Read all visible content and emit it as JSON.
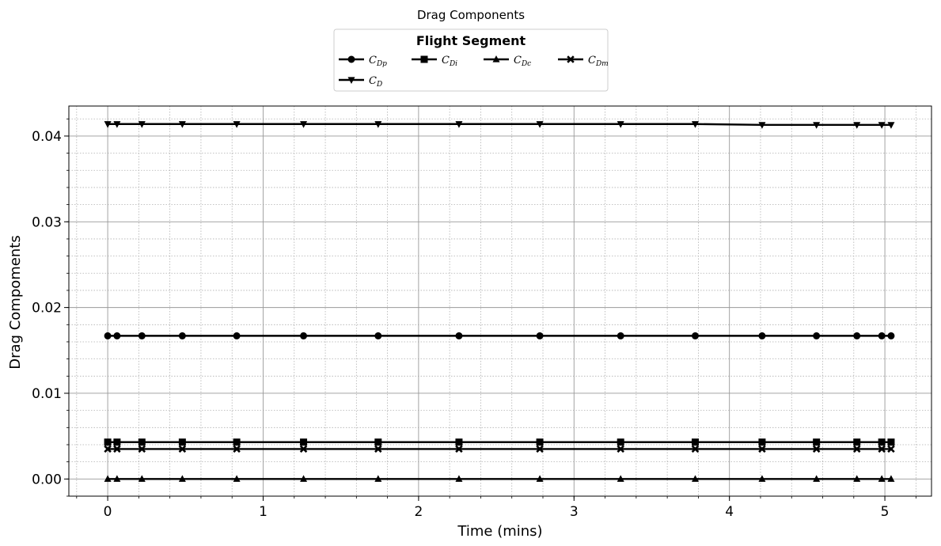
{
  "chart_data": {
    "type": "line",
    "title": "Drag Components",
    "xlabel": "Time (mins)",
    "ylabel": "Drag Compoments",
    "xlim": [
      -0.25,
      5.3
    ],
    "ylim": [
      -0.002,
      0.0435
    ],
    "xticks": [
      0,
      1,
      2,
      3,
      4,
      5
    ],
    "xtick_labels": [
      "0",
      "1",
      "2",
      "3",
      "4",
      "5"
    ],
    "yticks": [
      0.0,
      0.01,
      0.02,
      0.03,
      0.04
    ],
    "ytick_labels": [
      "0.00",
      "0.01",
      "0.02",
      "0.03",
      "0.04"
    ],
    "grid": true,
    "minor_grid": true,
    "legend": {
      "title": "Flight Segment",
      "placement": "above plot, centered",
      "columns": 4
    },
    "x": [
      0,
      0.06,
      0.22,
      0.48,
      0.83,
      1.26,
      1.74,
      2.26,
      2.78,
      3.3,
      3.78,
      4.21,
      4.56,
      4.82,
      4.98,
      5.04
    ],
    "series": [
      {
        "name": "C_Dp",
        "base": "C",
        "sub": "Dp",
        "marker": "circle",
        "color": "#000000",
        "values": [
          0.0167,
          0.0167,
          0.0167,
          0.0167,
          0.0167,
          0.0167,
          0.0167,
          0.0167,
          0.0167,
          0.0167,
          0.0167,
          0.0167,
          0.0167,
          0.0167,
          0.0167,
          0.0167
        ]
      },
      {
        "name": "C_Di",
        "base": "C",
        "sub": "Di",
        "marker": "square",
        "color": "#000000",
        "values": [
          0.0043,
          0.0043,
          0.0043,
          0.0043,
          0.0043,
          0.0043,
          0.0043,
          0.0043,
          0.0043,
          0.0043,
          0.0043,
          0.0043,
          0.0043,
          0.0043,
          0.0043,
          0.0043
        ]
      },
      {
        "name": "C_Dc",
        "base": "C",
        "sub": "Dc",
        "marker": "triangle-up",
        "color": "#000000",
        "values": [
          0.0,
          0.0,
          0.0,
          0.0,
          0.0,
          0.0,
          0.0,
          0.0,
          0.0,
          0.0,
          0.0,
          0.0,
          0.0,
          0.0,
          0.0,
          0.0
        ]
      },
      {
        "name": "C_Dm",
        "base": "C",
        "sub": "Dm",
        "marker": "x",
        "color": "#000000",
        "values": [
          0.0035,
          0.0035,
          0.0035,
          0.0035,
          0.0035,
          0.0035,
          0.0035,
          0.0035,
          0.0035,
          0.0035,
          0.0035,
          0.0035,
          0.0035,
          0.0035,
          0.0035,
          0.0035
        ]
      },
      {
        "name": "C_D",
        "base": "C",
        "sub": "D",
        "marker": "triangle-down",
        "color": "#000000",
        "values": [
          0.0414,
          0.0414,
          0.0414,
          0.0414,
          0.0414,
          0.0414,
          0.0414,
          0.0414,
          0.0414,
          0.0414,
          0.0414,
          0.0413,
          0.0413,
          0.0413,
          0.0413,
          0.0413
        ]
      }
    ]
  }
}
